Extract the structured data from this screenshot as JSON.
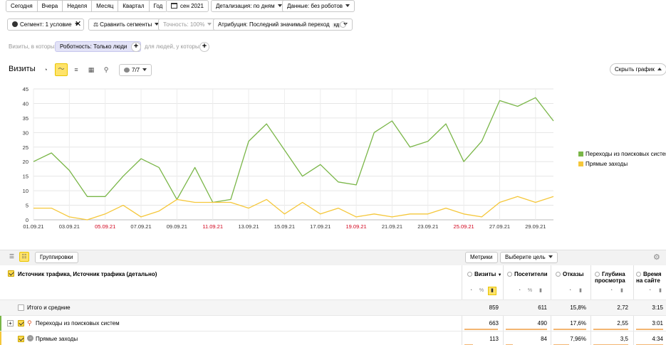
{
  "period_tabs": [
    "Сегодня",
    "Вчера",
    "Неделя",
    "Месяц",
    "Квартал",
    "Год"
  ],
  "date_range": "сен 2021",
  "detail": "Детализация: по дням",
  "data_filter": "Данные: без роботов",
  "segment": "Сегмент: 1 условие",
  "compare": "Сравнить сегменты",
  "accuracy": "Точность: 100%",
  "attribution": "Атрибуция: Последний значимый переход",
  "attribution_badge": "кд",
  "filter": {
    "prefix": "Визиты, в которых",
    "chip": "Роботность: Только люди",
    "suffix": "для людей, у которых"
  },
  "graph_header": {
    "title": "Визиты",
    "metric_count": "7/7",
    "hide_button": "Скрыть график"
  },
  "colors": {
    "green": "#7ab648",
    "yellow": "#f5c73a",
    "accent": "#ffdb4d"
  },
  "chart_data": {
    "type": "line",
    "x": [
      "01.09.21",
      "02.09.21",
      "03.09.21",
      "04.09.21",
      "05.09.21",
      "06.09.21",
      "07.09.21",
      "08.09.21",
      "09.09.21",
      "10.09.21",
      "11.09.21",
      "12.09.21",
      "13.09.21",
      "14.09.21",
      "15.09.21",
      "16.09.21",
      "17.09.21",
      "18.09.21",
      "19.09.21",
      "20.09.21",
      "21.09.21",
      "22.09.21",
      "23.09.21",
      "24.09.21",
      "25.09.21",
      "26.09.21",
      "27.09.21",
      "28.09.21",
      "29.09.21",
      "30.09.21"
    ],
    "tick_labels": [
      "01.09.21",
      "03.09.21",
      "05.09.21",
      "07.09.21",
      "09.09.21",
      "11.09.21",
      "13.09.21",
      "15.09.21",
      "17.09.21",
      "19.09.21",
      "21.09.21",
      "23.09.21",
      "25.09.21",
      "27.09.21",
      "29.09.21"
    ],
    "weekend_ticks": [
      "05.09.21",
      "11.09.21",
      "19.09.21",
      "25.09.21"
    ],
    "ylim": [
      0,
      45
    ],
    "yticks": [
      0,
      5,
      10,
      15,
      20,
      25,
      30,
      35,
      40,
      45
    ],
    "grid": true,
    "legend_position": "right",
    "series": [
      {
        "name": "Переходы из поисковых систем",
        "color": "#7ab648",
        "values": [
          20,
          23,
          17,
          8,
          8,
          15,
          21,
          18,
          7,
          18,
          6,
          7,
          27,
          33,
          24,
          15,
          19,
          13,
          12,
          30,
          34,
          25,
          27,
          33,
          20,
          27,
          41,
          39,
          42,
          34
        ]
      },
      {
        "name": "Прямые заходы",
        "color": "#f5c73a",
        "values": [
          4,
          4,
          1,
          0,
          2,
          5,
          1,
          3,
          7,
          6,
          6,
          6,
          4,
          7,
          2,
          6,
          2,
          4,
          1,
          2,
          1,
          2,
          2,
          4,
          2,
          1,
          6,
          8,
          6,
          8
        ]
      }
    ]
  },
  "table": {
    "groupings_button": "Группировки",
    "metrics_button": "Метрики",
    "goal_button": "Выберите цель",
    "dimension_header": "Источник трафика, Источник трафика (детально)",
    "columns": [
      {
        "label": "Визиты",
        "sort": "▼"
      },
      {
        "label": "Посетители"
      },
      {
        "label": "Отказы"
      },
      {
        "label": "Глубина просмотра"
      },
      {
        "label": "Время на сайте"
      }
    ],
    "rows": [
      {
        "label": "Итого и средние",
        "values": [
          "859",
          "611",
          "15,8%",
          "2,72",
          "3:15"
        ]
      },
      {
        "label": "Переходы из поисковых систем",
        "values": [
          "663",
          "490",
          "17,6%",
          "2,55",
          "3:01"
        ]
      },
      {
        "label": "Прямые заходы",
        "values": [
          "113",
          "84",
          "7,96%",
          "3,5",
          "4:34"
        ]
      }
    ]
  }
}
